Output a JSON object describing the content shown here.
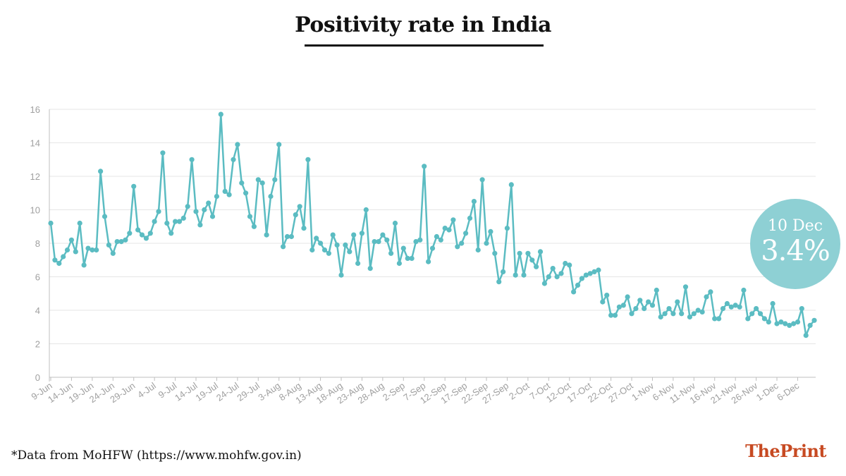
{
  "title": "Positivity rate in India",
  "source_note": "*Data from MoHFW (https://www.mohfw.gov.in)",
  "logo": {
    "prefix": "The",
    "suffix": "Print"
  },
  "callout": {
    "date": "10 Dec",
    "value": "3.4%"
  },
  "colors": {
    "line": "#5bbcc2",
    "callout": "#8ed0d4",
    "grid": "#e6e6e6",
    "axis": "#bfbfbf",
    "brand": "#c74a22"
  },
  "chart_data": {
    "type": "line",
    "title": "Positivity rate in India",
    "xlabel": "",
    "ylabel": "",
    "ylim": [
      0,
      16
    ],
    "yticks": [
      0,
      2,
      4,
      6,
      8,
      10,
      12,
      14,
      16
    ],
    "grid": true,
    "x_tick_labels": [
      "9-Jun",
      "14-Jun",
      "19-Jun",
      "24-Jun",
      "29-Jun",
      "4-Jul",
      "9-Jul",
      "14-Jul",
      "19-Jul",
      "24-Jul",
      "29-Jul",
      "3-Aug",
      "8-Aug",
      "13-Aug",
      "18-Aug",
      "23-Aug",
      "28-Aug",
      "2-Sep",
      "7-Sep",
      "12-Sep",
      "17-Sep",
      "22-Sep",
      "27-Sep",
      "2-Oct",
      "7-Oct",
      "12-Oct",
      "17-Oct",
      "22-Oct",
      "27-Oct",
      "1-Nov",
      "6-Nov",
      "11-Nov",
      "16-Nov",
      "21-Nov",
      "26-Nov",
      "1-Dec",
      "6-Dec"
    ],
    "x_range": [
      "9-Jun",
      "10-Dec"
    ],
    "values": [
      9.2,
      7.0,
      6.8,
      7.2,
      7.6,
      8.2,
      7.5,
      9.2,
      6.7,
      7.7,
      7.6,
      7.6,
      12.3,
      9.6,
      7.9,
      7.4,
      8.1,
      8.1,
      8.2,
      8.6,
      11.4,
      8.8,
      8.5,
      8.3,
      8.6,
      9.3,
      9.9,
      13.4,
      9.2,
      8.6,
      9.3,
      9.3,
      9.5,
      10.2,
      13.0,
      9.9,
      9.1,
      10.0,
      10.4,
      9.6,
      10.8,
      15.7,
      11.1,
      10.9,
      13.0,
      13.9,
      11.6,
      11.0,
      9.6,
      9.0,
      11.8,
      11.6,
      8.5,
      10.8,
      11.8,
      13.9,
      7.8,
      8.4,
      8.4,
      9.7,
      10.2,
      8.9,
      13.0,
      7.6,
      8.3,
      8.0,
      7.6,
      7.4,
      8.5,
      7.9,
      6.1,
      7.9,
      7.5,
      8.5,
      6.8,
      8.6,
      10.0,
      6.5,
      8.1,
      8.1,
      8.5,
      8.2,
      7.4,
      9.2,
      6.8,
      7.7,
      7.1,
      7.1,
      8.1,
      8.2,
      12.6,
      6.9,
      7.7,
      8.4,
      8.2,
      8.9,
      8.8,
      9.4,
      7.8,
      8.0,
      8.6,
      9.5,
      10.5,
      7.6,
      11.8,
      8.0,
      8.7,
      7.4,
      5.7,
      6.3,
      8.9,
      11.5,
      6.1,
      7.4,
      6.1,
      7.4,
      7.0,
      6.6,
      7.5,
      5.6,
      6.0,
      6.5,
      6.0,
      6.2,
      6.8,
      6.7,
      5.1,
      5.5,
      5.9,
      6.1,
      6.2,
      6.3,
      6.4,
      4.5,
      4.9,
      3.7,
      3.7,
      4.2,
      4.3,
      4.8,
      3.8,
      4.1,
      4.6,
      4.1,
      4.5,
      4.3,
      5.2,
      3.6,
      3.8,
      4.1,
      3.8,
      4.5,
      3.8,
      5.4,
      3.6,
      3.8,
      4.0,
      3.9,
      4.8,
      5.1,
      3.5,
      3.5,
      4.1,
      4.4,
      4.2,
      4.3,
      4.2,
      5.2,
      3.5,
      3.8,
      4.1,
      3.8,
      3.5,
      3.3,
      4.4,
      3.2,
      3.3,
      3.2,
      3.1,
      3.2,
      3.3,
      4.1,
      2.5,
      3.1,
      3.4
    ]
  }
}
